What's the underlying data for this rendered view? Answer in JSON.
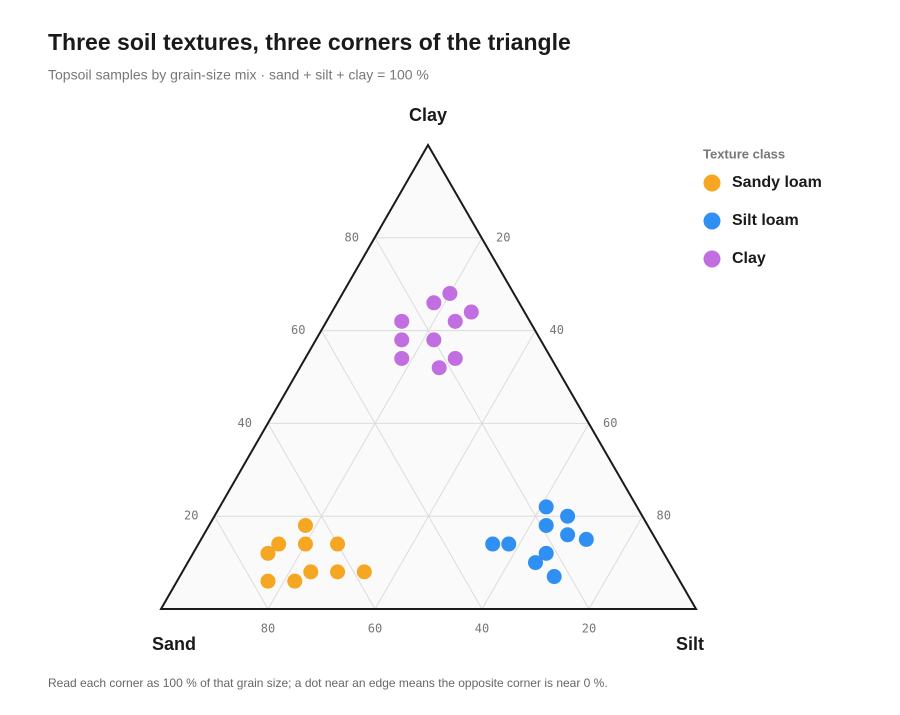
{
  "chart_data": {
    "type": "ternary",
    "title": "Three soil textures, three corners of the triangle",
    "subtitle": "Topsoil samples by grain-size mix · sand + silt + clay = 100 %",
    "footnote": "Read each corner as 100 % of that grain size; a dot near an edge means the opposite corner is near 0 %.",
    "axes": {
      "sand": {
        "label": "Sand",
        "ticks": [
          20,
          40,
          60,
          80
        ]
      },
      "silt": {
        "label": "Silt",
        "ticks": [
          20,
          40,
          60,
          80
        ]
      },
      "clay": {
        "label": "Clay",
        "ticks": [
          20,
          40,
          60,
          80
        ]
      }
    },
    "grid": true,
    "legend_title": "Texture class",
    "legend_position": "right",
    "series": [
      {
        "name": "Sandy loam",
        "color": "#f5a623",
        "sand": [
          64,
          71,
          66,
          60,
          74,
          68,
          63,
          58,
          77,
          72
        ],
        "silt": [
          18,
          15,
          20,
          26,
          14,
          24,
          29,
          34,
          17,
          22
        ],
        "clay": [
          18,
          14,
          14,
          14,
          12,
          8,
          8,
          8,
          6,
          6
        ]
      },
      {
        "name": "Silt loam",
        "color": "#2f8ff2",
        "sand": [
          17,
          14,
          19,
          16,
          13,
          31,
          28,
          22,
          25,
          23
        ],
        "silt": [
          61,
          66,
          63,
          68,
          72,
          55,
          58,
          66,
          65,
          70
        ],
        "clay": [
          22,
          20,
          18,
          16,
          15,
          14,
          14,
          12,
          10,
          7
        ]
      },
      {
        "name": "Clay",
        "color": "#c06ee0",
        "sand": [
          12,
          16,
          10,
          24,
          14,
          26,
          20,
          28,
          18,
          22
        ],
        "silt": [
          20,
          18,
          26,
          14,
          24,
          16,
          22,
          18,
          28,
          26
        ],
        "clay": [
          68,
          66,
          64,
          62,
          62,
          58,
          58,
          54,
          54,
          52
        ]
      }
    ]
  }
}
